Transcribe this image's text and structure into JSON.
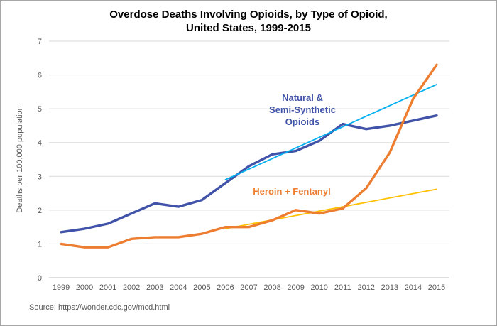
{
  "chart_data": {
    "type": "line",
    "title": "Overdose Deaths Involving Opioids, by Type of Opioid, United States, 1999-2015",
    "title_line1": "Overdose Deaths Involving Opioids, by Type of Opioid,",
    "title_line2": "United States, 1999-2015",
    "ylabel": "Deaths per 100,000 population",
    "xlabel": "",
    "ylim": [
      0,
      7
    ],
    "yticks": [
      "0",
      "1",
      "2",
      "3",
      "4",
      "5",
      "6",
      "7"
    ],
    "grid": "horizontal",
    "legend_position": "inline-annotations",
    "categories": [
      1999,
      2000,
      2001,
      2002,
      2003,
      2004,
      2005,
      2006,
      2007,
      2008,
      2009,
      2010,
      2011,
      2012,
      2013,
      2014,
      2015
    ],
    "series": [
      {
        "name": "Natural & Semi-Synthetic Opioids",
        "color": "#4053a8",
        "stroke_width": 3.4,
        "years": [
          1999,
          2000,
          2001,
          2002,
          2003,
          2004,
          2005,
          2006,
          2007,
          2008,
          2009,
          2010,
          2011,
          2012,
          2013,
          2014,
          2015
        ],
        "values": [
          1.35,
          1.45,
          1.6,
          1.9,
          2.2,
          2.1,
          2.3,
          2.8,
          3.3,
          3.65,
          3.75,
          4.05,
          4.55,
          4.4,
          4.5,
          4.65,
          4.8
        ]
      },
      {
        "name": "Natural & Semi-Synthetic Opioids trend",
        "color": "#00b0f0",
        "stroke_width": 1.8,
        "years": [
          2006,
          2015
        ],
        "values": [
          2.9,
          5.72
        ]
      },
      {
        "name": "Heroin + Fentanyl trend",
        "color": "#ffc000",
        "stroke_width": 1.8,
        "years": [
          2006,
          2015
        ],
        "values": [
          1.45,
          2.62
        ]
      },
      {
        "name": "Heroin + Fentanyl",
        "color": "#ed7d31",
        "stroke_width": 3.4,
        "years": [
          1999,
          2000,
          2001,
          2002,
          2003,
          2004,
          2005,
          2006,
          2007,
          2008,
          2009,
          2010,
          2011,
          2012,
          2013,
          2014,
          2015
        ],
        "values": [
          1.0,
          0.9,
          0.9,
          1.15,
          1.2,
          1.2,
          1.3,
          1.5,
          1.5,
          1.7,
          2.0,
          1.9,
          2.05,
          2.65,
          3.7,
          5.3,
          6.3
        ]
      }
    ],
    "annotations": {
      "natural_label": "Natural &\nSemi-Synthetic\nOpioids",
      "heroin_label": "Heroin + Fentanyl"
    },
    "colors": {
      "gridline": "#d9d9d9",
      "axis_line": "#bfbfbf",
      "tick_text": "#595959"
    }
  },
  "source": "Source: https://wonder.cdc.gov/mcd.html"
}
